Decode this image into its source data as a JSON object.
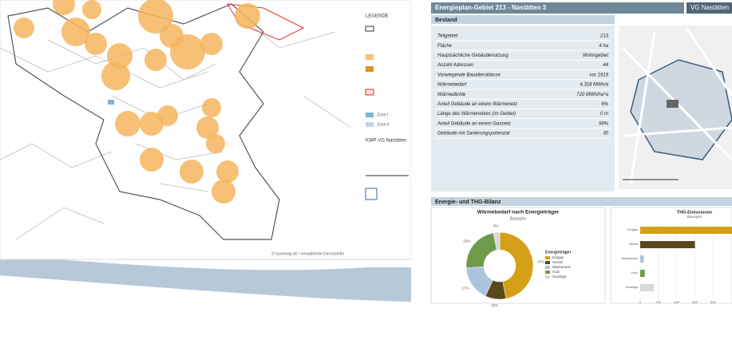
{
  "map": {
    "legend_title": "LEGENDE",
    "zones": [
      "Zone I",
      "Zone II"
    ],
    "info_title": "KWP VG Nastätten",
    "credit": "© basemap.de / verwaltende Dienststelle"
  },
  "report": {
    "title": "Energieplan-Gebiet 213 - Nastätten 3",
    "region": "VG Nastätten",
    "section_stock": "Bestand",
    "table": {
      "rows": [
        [
          "Teilgebiet",
          "213"
        ],
        [
          "Fläche",
          "4 ha"
        ],
        [
          "Hauptsächliche Gebäudenutzung",
          "Wohngebiet"
        ],
        [
          "Anzahl Adressen",
          "44"
        ],
        [
          "Vorwiegende Baualtersklasse",
          "vor 1919"
        ],
        [
          "Wärmebedarf",
          "4.318 MWh/a"
        ],
        [
          "Wärmedichte",
          "720 MWh/ha*a"
        ],
        [
          "Anteil Gebäude an einem Wärmenetz",
          "6%"
        ],
        [
          "Länge des Wärmenetzes (im Gebiet)",
          "0 m"
        ],
        [
          "Anteil Gebäude an einem Gasnetz",
          "58%"
        ],
        [
          "Gebäude mit Sanierungspotenzial",
          "30"
        ]
      ]
    },
    "section_balance": "Energie- und THG-Bilanz"
  },
  "chart_data": [
    {
      "type": "pie",
      "title": "Wärmebedarf nach Energieträger",
      "subtitle": "Basisjahr",
      "legend_title": "Energieträger",
      "categories": [
        "Erdgas",
        "Heizöl",
        "Wärmenetz",
        "Holz",
        "Sonstige"
      ],
      "values": [
        47,
        10,
        17,
        23,
        3
      ],
      "value_labels": [
        "47%",
        "10%",
        "17%",
        "23%",
        "3%"
      ],
      "colors": [
        "#d4a017",
        "#5a4a1a",
        "#a9c4dc",
        "#6f9a4a",
        "#d9d9d9"
      ]
    },
    {
      "type": "bar",
      "orientation": "horizontal",
      "title": "THG-Emissionen",
      "subtitle": "Basisjahr",
      "categories": [
        "Erdgas",
        "Heizöl",
        "Wärmenetz",
        "Holz",
        "Sonstige"
      ],
      "values": [
        1200,
        600,
        40,
        50,
        150
      ],
      "colors": [
        "#d4a017",
        "#5a4a1a",
        "#a9c4dc",
        "#6f9a4a",
        "#d9d9d9"
      ],
      "xlim": [
        0,
        1400
      ],
      "xticks": [
        0,
        200,
        400,
        600,
        800
      ],
      "grid": true
    }
  ]
}
